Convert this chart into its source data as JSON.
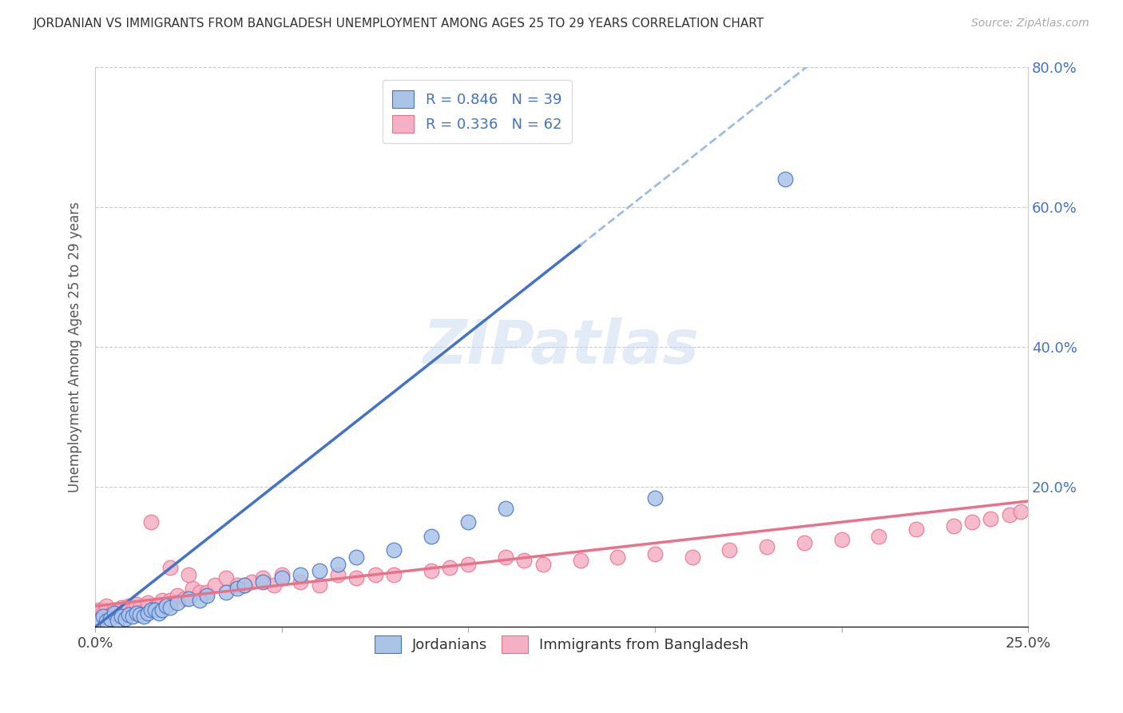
{
  "title": "JORDANIAN VS IMMIGRANTS FROM BANGLADESH UNEMPLOYMENT AMONG AGES 25 TO 29 YEARS CORRELATION CHART",
  "source": "Source: ZipAtlas.com",
  "ylabel": "Unemployment Among Ages 25 to 29 years",
  "xlim": [
    0,
    0.25
  ],
  "ylim": [
    0,
    0.8
  ],
  "xticks": [
    0.0,
    0.05,
    0.1,
    0.15,
    0.2,
    0.25
  ],
  "yticks": [
    0.0,
    0.2,
    0.4,
    0.6,
    0.8
  ],
  "right_ytick_labels": [
    "",
    "20.0%",
    "40.0%",
    "60.0%",
    "80.0%"
  ],
  "xtick_labels": [
    "0.0%",
    "",
    "",
    "",
    "",
    "25.0%"
  ],
  "legend1_R": "0.846",
  "legend1_N": "39",
  "legend2_R": "0.336",
  "legend2_N": "62",
  "jordanian_color": "#aac4e8",
  "bangladesh_color": "#f5b0c5",
  "line1_color": "#4472c4",
  "line2_color": "#e8728a",
  "dashed_color": "#a0bce0",
  "watermark": "ZIPatlas",
  "jordanian_R": 0.846,
  "bangladesh_R": 0.336,
  "line1_slope": 4.2,
  "line1_intercept": 0.0,
  "line1_solid_end": 0.13,
  "line1_dash_start": 0.13,
  "line1_dash_end": 0.25,
  "line2_slope": 0.6,
  "line2_intercept": 0.03,
  "jordanian_scatter_x": [
    0.001,
    0.002,
    0.003,
    0.004,
    0.005,
    0.006,
    0.007,
    0.008,
    0.009,
    0.01,
    0.011,
    0.012,
    0.013,
    0.014,
    0.015,
    0.016,
    0.017,
    0.018,
    0.019,
    0.02,
    0.022,
    0.025,
    0.028,
    0.03,
    0.035,
    0.038,
    0.04,
    0.045,
    0.05,
    0.055,
    0.06,
    0.065,
    0.07,
    0.08,
    0.09,
    0.1,
    0.11,
    0.15,
    0.185
  ],
  "jordanian_scatter_y": [
    0.01,
    0.015,
    0.008,
    0.012,
    0.02,
    0.01,
    0.015,
    0.012,
    0.018,
    0.015,
    0.02,
    0.018,
    0.015,
    0.02,
    0.025,
    0.025,
    0.02,
    0.025,
    0.03,
    0.028,
    0.035,
    0.04,
    0.038,
    0.045,
    0.05,
    0.055,
    0.06,
    0.065,
    0.07,
    0.075,
    0.08,
    0.09,
    0.1,
    0.11,
    0.13,
    0.15,
    0.17,
    0.185,
    0.64
  ],
  "bangladesh_scatter_x": [
    0.001,
    0.002,
    0.003,
    0.004,
    0.005,
    0.006,
    0.007,
    0.008,
    0.009,
    0.01,
    0.011,
    0.012,
    0.013,
    0.014,
    0.015,
    0.016,
    0.017,
    0.018,
    0.019,
    0.02,
    0.022,
    0.024,
    0.026,
    0.028,
    0.03,
    0.032,
    0.035,
    0.038,
    0.04,
    0.042,
    0.045,
    0.048,
    0.05,
    0.055,
    0.06,
    0.065,
    0.07,
    0.075,
    0.08,
    0.09,
    0.095,
    0.1,
    0.11,
    0.115,
    0.12,
    0.13,
    0.14,
    0.15,
    0.16,
    0.17,
    0.18,
    0.19,
    0.2,
    0.21,
    0.22,
    0.23,
    0.235,
    0.24,
    0.245,
    0.248,
    0.02,
    0.025
  ],
  "bangladesh_scatter_y": [
    0.025,
    0.02,
    0.03,
    0.018,
    0.025,
    0.02,
    0.028,
    0.022,
    0.03,
    0.025,
    0.032,
    0.028,
    0.022,
    0.035,
    0.15,
    0.028,
    0.032,
    0.038,
    0.03,
    0.038,
    0.045,
    0.04,
    0.055,
    0.05,
    0.05,
    0.06,
    0.07,
    0.06,
    0.06,
    0.065,
    0.07,
    0.06,
    0.075,
    0.065,
    0.06,
    0.075,
    0.07,
    0.075,
    0.075,
    0.08,
    0.085,
    0.09,
    0.1,
    0.095,
    0.09,
    0.095,
    0.1,
    0.105,
    0.1,
    0.11,
    0.115,
    0.12,
    0.125,
    0.13,
    0.14,
    0.145,
    0.15,
    0.155,
    0.16,
    0.165,
    0.085,
    0.075
  ]
}
